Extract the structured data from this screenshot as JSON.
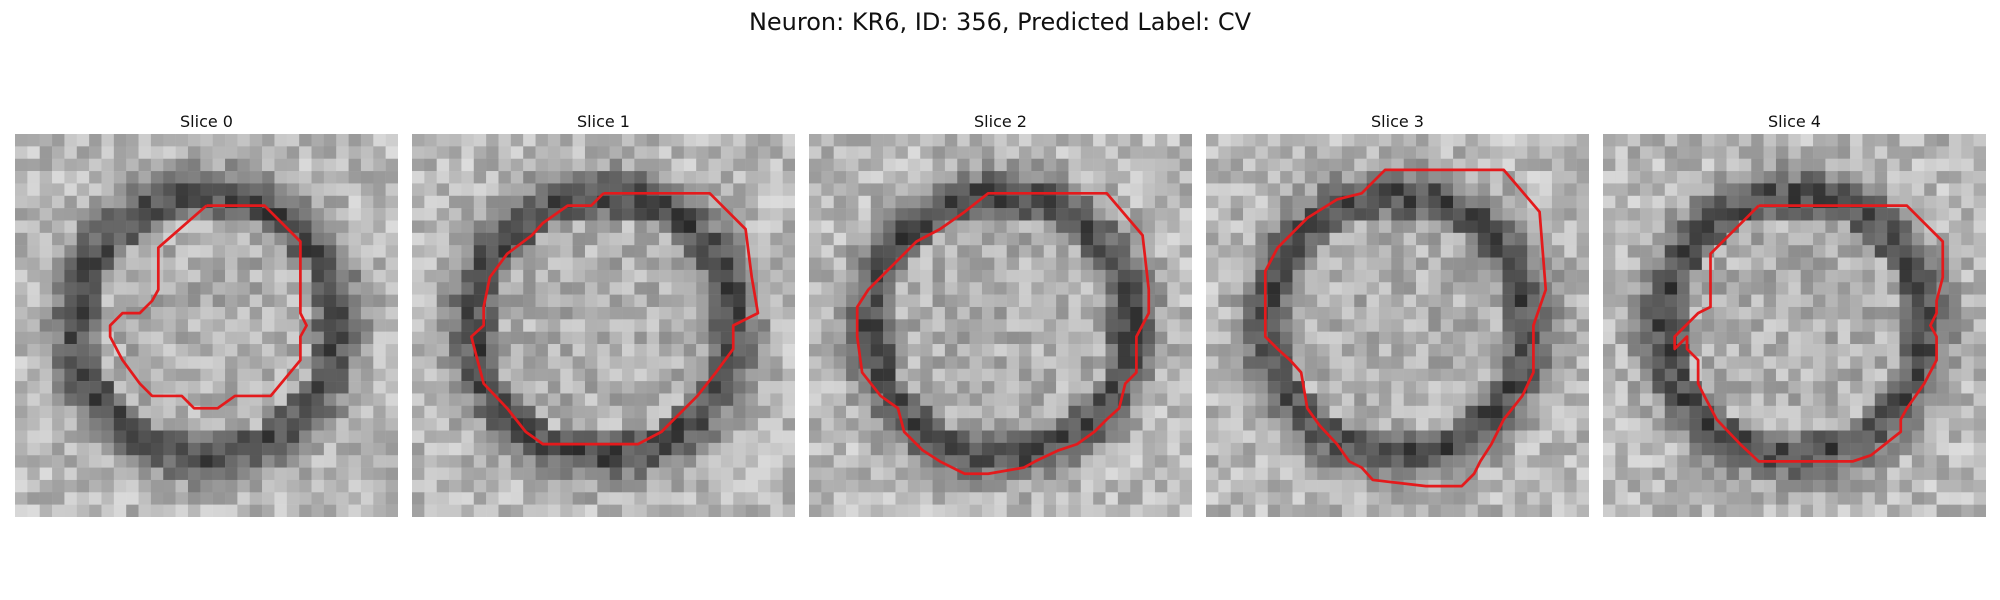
{
  "figure": {
    "title": "Neuron: KR6, ID: 356, Predicted Label: CV"
  },
  "panels": [
    {
      "title": "Slice 0",
      "outline_color": "#e41a1c"
    },
    {
      "title": "Slice 1",
      "outline_color": "#e41a1c"
    },
    {
      "title": "Slice 2",
      "outline_color": "#e41a1c"
    },
    {
      "title": "Slice 3",
      "outline_color": "#e41a1c"
    },
    {
      "title": "Slice 4",
      "outline_color": "#e41a1c"
    }
  ]
}
